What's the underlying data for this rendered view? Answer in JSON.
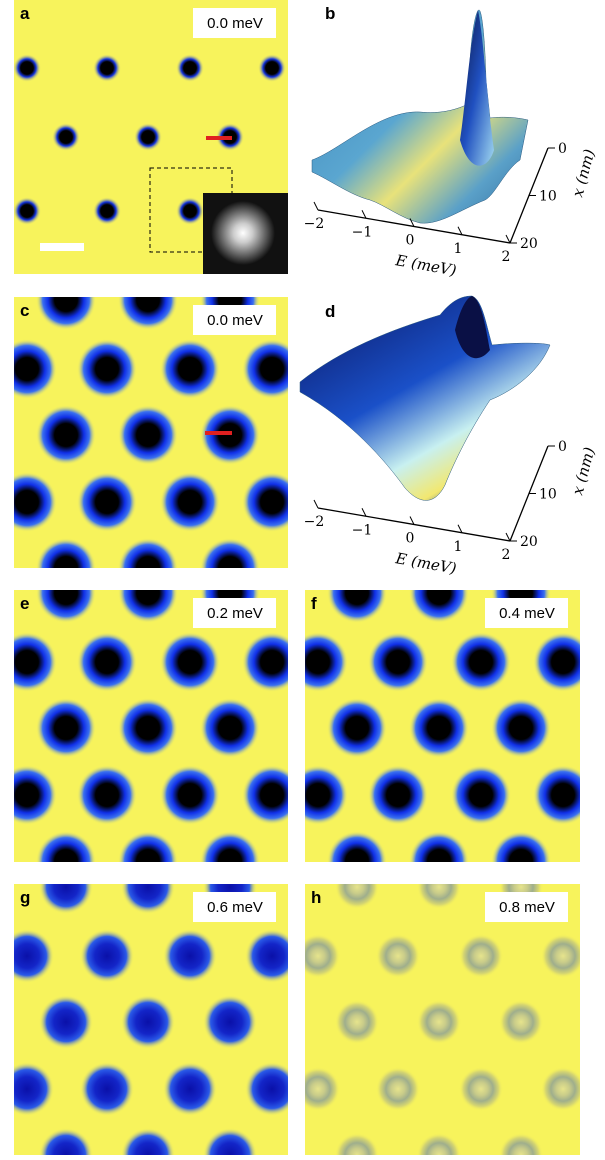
{
  "panels": {
    "a": {
      "label": "a",
      "energy": "0.0 meV"
    },
    "b": {
      "label": "b",
      "e_axis_label": "E (meV)",
      "e_ticks": [
        "−2",
        "−1",
        "0",
        "1",
        "2"
      ],
      "x_axis_label": "x (nm)",
      "x_ticks": [
        "0",
        "10",
        "20"
      ]
    },
    "c": {
      "label": "c",
      "energy": "0.0 meV"
    },
    "d": {
      "label": "d",
      "e_axis_label": "E (meV)",
      "e_ticks": [
        "−2",
        "−1",
        "0",
        "1",
        "2"
      ],
      "x_axis_label": "x (nm)",
      "x_ticks": [
        "0",
        "10",
        "20"
      ]
    },
    "e": {
      "label": "e",
      "energy": "0.2 meV"
    },
    "f": {
      "label": "f",
      "energy": "0.4 meV"
    },
    "g": {
      "label": "g",
      "energy": "0.6 meV"
    },
    "h": {
      "label": "h",
      "energy": "0.8 meV"
    }
  }
}
